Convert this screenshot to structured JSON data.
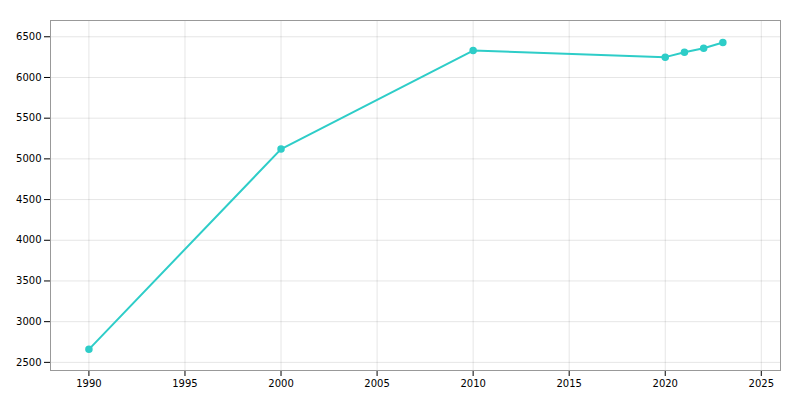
{
  "chart_data": {
    "type": "line",
    "x": [
      1990,
      2000,
      2010,
      2020,
      2021,
      2022,
      2023
    ],
    "values": [
      2660,
      5120,
      6330,
      6250,
      6310,
      6360,
      6430
    ],
    "color": "#2ECDC8",
    "marker": "circle",
    "xlim": [
      1988,
      2026
    ],
    "xticks": [
      1990,
      1995,
      2000,
      2005,
      2010,
      2015,
      2020,
      2025
    ],
    "ylim": [
      2400,
      6700
    ],
    "yticks": [
      2500,
      3000,
      3500,
      4000,
      4500,
      5000,
      5500,
      6000,
      6500
    ],
    "grid": true
  }
}
